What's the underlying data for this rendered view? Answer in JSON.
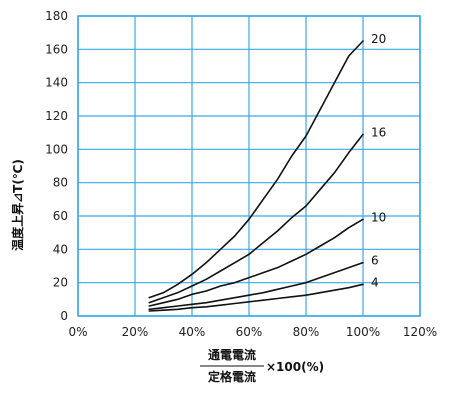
{
  "chart_data": {
    "type": "line",
    "ylabel": "温度上昇⊿T(℃)",
    "xlabel": {
      "numerator": "通電電流",
      "denominator": "定格電流",
      "suffix": "×100(%)"
    },
    "xlim": [
      0,
      120
    ],
    "ylim": [
      0,
      180
    ],
    "x_ticks": [
      0,
      20,
      40,
      60,
      80,
      100,
      120
    ],
    "x_tick_labels": [
      "0%",
      "20%",
      "40%",
      "60%",
      "80%",
      "100%",
      "120%"
    ],
    "y_ticks": [
      0,
      20,
      40,
      60,
      80,
      100,
      120,
      140,
      160,
      180
    ],
    "y_tick_labels": [
      "0",
      "20",
      "40",
      "60",
      "80",
      "100",
      "120",
      "140",
      "160",
      "180"
    ],
    "grid": true,
    "series": [
      {
        "name": "20",
        "points": [
          [
            25,
            11
          ],
          [
            30,
            14
          ],
          [
            35,
            19
          ],
          [
            40,
            25
          ],
          [
            45,
            32
          ],
          [
            50,
            40
          ],
          [
            55,
            48
          ],
          [
            60,
            58
          ],
          [
            65,
            70
          ],
          [
            70,
            82
          ],
          [
            75,
            96
          ],
          [
            80,
            108
          ],
          [
            85,
            124
          ],
          [
            90,
            140
          ],
          [
            95,
            156
          ],
          [
            100,
            165
          ]
        ]
      },
      {
        "name": "16",
        "points": [
          [
            25,
            8
          ],
          [
            30,
            11
          ],
          [
            35,
            14
          ],
          [
            40,
            18
          ],
          [
            45,
            22
          ],
          [
            50,
            27
          ],
          [
            55,
            32
          ],
          [
            60,
            37
          ],
          [
            65,
            44
          ],
          [
            70,
            51
          ],
          [
            75,
            59
          ],
          [
            80,
            66
          ],
          [
            85,
            76
          ],
          [
            90,
            86
          ],
          [
            95,
            98
          ],
          [
            100,
            109
          ]
        ]
      },
      {
        "name": "10",
        "points": [
          [
            25,
            6
          ],
          [
            30,
            8
          ],
          [
            35,
            10
          ],
          [
            40,
            13
          ],
          [
            45,
            15
          ],
          [
            50,
            18
          ],
          [
            55,
            20
          ],
          [
            60,
            23
          ],
          [
            65,
            26
          ],
          [
            70,
            29
          ],
          [
            75,
            33
          ],
          [
            80,
            37
          ],
          [
            85,
            42
          ],
          [
            90,
            47
          ],
          [
            95,
            53
          ],
          [
            100,
            58
          ]
        ]
      },
      {
        "name": "6",
        "points": [
          [
            25,
            4
          ],
          [
            30,
            5
          ],
          [
            35,
            6
          ],
          [
            40,
            7
          ],
          [
            45,
            8
          ],
          [
            50,
            9.5
          ],
          [
            55,
            11
          ],
          [
            60,
            12.5
          ],
          [
            65,
            14
          ],
          [
            70,
            16
          ],
          [
            75,
            18
          ],
          [
            80,
            20
          ],
          [
            85,
            23
          ],
          [
            90,
            26
          ],
          [
            95,
            29
          ],
          [
            100,
            32
          ]
        ]
      },
      {
        "name": "4",
        "points": [
          [
            25,
            3
          ],
          [
            30,
            3.5
          ],
          [
            35,
            4
          ],
          [
            40,
            5
          ],
          [
            45,
            5.5
          ],
          [
            50,
            6.5
          ],
          [
            55,
            7.5
          ],
          [
            60,
            8.5
          ],
          [
            65,
            9.5
          ],
          [
            70,
            10.5
          ],
          [
            75,
            11.5
          ],
          [
            80,
            12.5
          ],
          [
            85,
            14
          ],
          [
            90,
            15.5
          ],
          [
            95,
            17
          ],
          [
            100,
            19
          ]
        ]
      }
    ],
    "colors": {
      "grid": "#3ba9e6",
      "border": "#3ba9e6",
      "line": "#111111"
    }
  }
}
